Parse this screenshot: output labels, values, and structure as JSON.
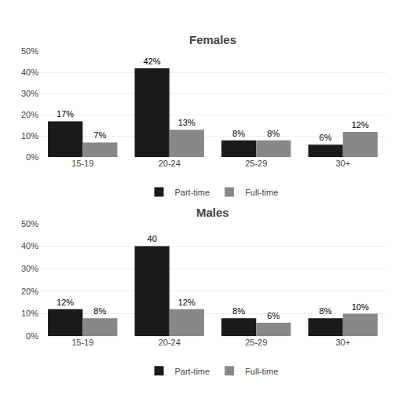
{
  "chart_data": [
    {
      "type": "bar",
      "title": "Females",
      "categories": [
        "15-19",
        "20-24",
        "25-29",
        "30+"
      ],
      "series": [
        {
          "name": "Part-time",
          "color": "#1a1a1a",
          "values": [
            17,
            42,
            8,
            6
          ],
          "value_labels": [
            "17%",
            "42%",
            "8%",
            "6%"
          ]
        },
        {
          "name": "Full-time",
          "color": "#888888",
          "values": [
            7,
            13,
            8,
            12
          ],
          "value_labels": [
            "7%",
            "13%",
            "8%",
            "12%"
          ]
        }
      ],
      "ylim": [
        0,
        50
      ],
      "yticks": [
        {
          "value": 0,
          "label": "0%"
        },
        {
          "value": 10,
          "label": "10%"
        },
        {
          "value": 20,
          "label": "20%"
        },
        {
          "value": 30,
          "label": "30%"
        },
        {
          "value": 40,
          "label": "40%"
        },
        {
          "value": 50,
          "label": "50%"
        }
      ],
      "grid": true,
      "data_labels": true,
      "legend": "bottom"
    },
    {
      "type": "bar",
      "title": "Males",
      "categories": [
        "15-19",
        "20-24",
        "25-29",
        "30+"
      ],
      "series": [
        {
          "name": "Part-time",
          "color": "#1a1a1a",
          "values": [
            12,
            40,
            8,
            8
          ],
          "value_labels": [
            "12%",
            "40",
            "8%",
            "8%"
          ]
        },
        {
          "name": "Full-time",
          "color": "#888888",
          "values": [
            8,
            12,
            6,
            10
          ],
          "value_labels": [
            "8%",
            "12%",
            "6%",
            "10%"
          ]
        }
      ],
      "ylim": [
        0,
        50
      ],
      "yticks": [
        {
          "value": 0,
          "label": "0%"
        },
        {
          "value": 10,
          "label": "10%"
        },
        {
          "value": 20,
          "label": "20%"
        },
        {
          "value": 30,
          "label": "30%"
        },
        {
          "value": 40,
          "label": "40%"
        },
        {
          "value": 50,
          "label": "50%"
        }
      ],
      "grid": true,
      "data_labels": true,
      "legend": "bottom"
    }
  ]
}
